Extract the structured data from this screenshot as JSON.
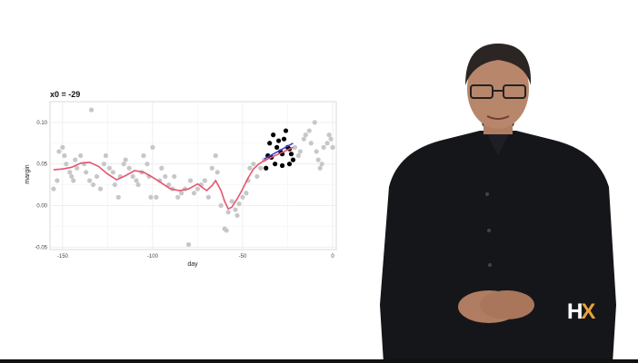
{
  "video": {
    "logo_text_h": "H",
    "logo_text_x": "X",
    "colors": {
      "background": "#ffffff",
      "logo_accent": "#e8a33a",
      "shirt": "#15161a"
    }
  },
  "chart_data": {
    "type": "scatter",
    "title": "x0 =  -29",
    "xlabel": "day",
    "ylabel": "margin",
    "xlim": [
      -157,
      2
    ],
    "ylim": [
      -0.053,
      0.125
    ],
    "xticks": [
      -150,
      -100,
      -50,
      0
    ],
    "xtick_labels": [
      "-150",
      "-100",
      "-50",
      "0"
    ],
    "yticks": [
      -0.05,
      0.0,
      0.05,
      0.1
    ],
    "ytick_labels": [
      "-0.05",
      "0.00",
      "0.05",
      "0.10"
    ],
    "grid": true,
    "colors": {
      "points_out": "#c7c7c7",
      "points_window": "#000000",
      "smooth": "#e8546e",
      "local_fit": "#4040c8",
      "panel": "#ffffff",
      "grid": "#ebebeb"
    },
    "points_outside": [
      [
        -155,
        0.02
      ],
      [
        -153,
        0.03
      ],
      [
        -152,
        0.065
      ],
      [
        -150,
        0.07
      ],
      [
        -149,
        0.06
      ],
      [
        -148,
        0.05
      ],
      [
        -146,
        0.04
      ],
      [
        -145,
        0.035
      ],
      [
        -144,
        0.03
      ],
      [
        -143,
        0.055
      ],
      [
        -142,
        0.045
      ],
      [
        -140,
        0.06
      ],
      [
        -138,
        0.05
      ],
      [
        -137,
        0.04
      ],
      [
        -135,
        0.03
      ],
      [
        -134,
        0.115
      ],
      [
        -133,
        0.025
      ],
      [
        -131,
        0.035
      ],
      [
        -129,
        0.02
      ],
      [
        -127,
        0.05
      ],
      [
        -126,
        0.06
      ],
      [
        -124,
        0.045
      ],
      [
        -122,
        0.04
      ],
      [
        -121,
        0.025
      ],
      [
        -119,
        0.01
      ],
      [
        -118,
        0.035
      ],
      [
        -116,
        0.05
      ],
      [
        -115,
        0.055
      ],
      [
        -113,
        0.045
      ],
      [
        -111,
        0.035
      ],
      [
        -109,
        0.03
      ],
      [
        -108,
        0.025
      ],
      [
        -106,
        0.04
      ],
      [
        -105,
        0.06
      ],
      [
        -103,
        0.05
      ],
      [
        -102,
        0.035
      ],
      [
        -101,
        0.01
      ],
      [
        -100,
        0.07
      ],
      [
        -98,
        0.01
      ],
      [
        -96,
        0.03
      ],
      [
        -95,
        0.045
      ],
      [
        -93,
        0.035
      ],
      [
        -91,
        0.025
      ],
      [
        -89,
        0.02
      ],
      [
        -88,
        0.035
      ],
      [
        -86,
        0.01
      ],
      [
        -84,
        0.015
      ],
      [
        -82,
        0.02
      ],
      [
        -80,
        -0.047
      ],
      [
        -79,
        0.03
      ],
      [
        -77,
        0.015
      ],
      [
        -75,
        0.02
      ],
      [
        -73,
        0.025
      ],
      [
        -71,
        0.03
      ],
      [
        -69,
        0.01
      ],
      [
        -67,
        0.045
      ],
      [
        -65,
        0.06
      ],
      [
        -64,
        0.04
      ],
      [
        -62,
        0.0
      ],
      [
        -60,
        -0.028
      ],
      [
        -59,
        -0.03
      ],
      [
        -58,
        -0.008
      ],
      [
        -56,
        0.005
      ],
      [
        -54,
        -0.005
      ],
      [
        -53,
        -0.012
      ],
      [
        -52,
        0.002
      ],
      [
        -50,
        0.01
      ],
      [
        -48,
        0.015
      ],
      [
        -47,
        0.03
      ],
      [
        -46,
        0.045
      ],
      [
        -44,
        0.05
      ],
      [
        -42,
        0.035
      ],
      [
        -40,
        0.045
      ],
      [
        -38,
        0.055
      ],
      [
        -21,
        0.07
      ],
      [
        -19,
        0.06
      ],
      [
        -18,
        0.065
      ],
      [
        -16,
        0.08
      ],
      [
        -15,
        0.085
      ],
      [
        -13,
        0.09
      ],
      [
        -12,
        0.075
      ],
      [
        -10,
        0.1
      ],
      [
        -9,
        0.065
      ],
      [
        -8,
        0.055
      ],
      [
        -7,
        0.045
      ],
      [
        -6,
        0.05
      ],
      [
        -5,
        0.07
      ],
      [
        -3,
        0.075
      ],
      [
        -2,
        0.085
      ],
      [
        -1,
        0.08
      ],
      [
        0,
        0.07
      ]
    ],
    "points_window": [
      [
        -37,
        0.045
      ],
      [
        -36,
        0.06
      ],
      [
        -35,
        0.075
      ],
      [
        -34,
        0.058
      ],
      [
        -33,
        0.085
      ],
      [
        -32,
        0.05
      ],
      [
        -31,
        0.07
      ],
      [
        -30,
        0.078
      ],
      [
        -29,
        0.065
      ],
      [
        -28,
        0.048
      ],
      [
        -27,
        0.08
      ],
      [
        -26,
        0.09
      ],
      [
        -25,
        0.07
      ],
      [
        -24,
        0.05
      ],
      [
        -23,
        0.062
      ],
      [
        -22,
        0.055
      ],
      [
        -24,
        0.068
      ],
      [
        -28,
        0.062
      ]
    ],
    "smooth_curve": [
      [
        -155,
        0.043
      ],
      [
        -150,
        0.044
      ],
      [
        -145,
        0.046
      ],
      [
        -140,
        0.051
      ],
      [
        -135,
        0.052
      ],
      [
        -130,
        0.047
      ],
      [
        -125,
        0.038
      ],
      [
        -120,
        0.031
      ],
      [
        -115,
        0.036
      ],
      [
        -110,
        0.042
      ],
      [
        -105,
        0.04
      ],
      [
        -100,
        0.034
      ],
      [
        -95,
        0.027
      ],
      [
        -90,
        0.02
      ],
      [
        -85,
        0.018
      ],
      [
        -80,
        0.02
      ],
      [
        -75,
        0.026
      ],
      [
        -70,
        0.018
      ],
      [
        -67,
        0.024
      ],
      [
        -65,
        0.03
      ],
      [
        -62,
        0.018
      ],
      [
        -60,
        0.005
      ],
      [
        -58,
        -0.004
      ],
      [
        -56,
        -0.002
      ],
      [
        -53,
        0.008
      ],
      [
        -50,
        0.02
      ],
      [
        -47,
        0.033
      ],
      [
        -44,
        0.044
      ],
      [
        -41,
        0.05
      ],
      [
        -38,
        0.054
      ],
      [
        -35,
        0.057
      ],
      [
        -32,
        0.06
      ],
      [
        -29,
        0.063
      ],
      [
        -26,
        0.066
      ],
      [
        -22,
        0.07
      ]
    ],
    "local_fit": [
      [
        -38,
        0.056
      ],
      [
        -22,
        0.075
      ]
    ]
  }
}
